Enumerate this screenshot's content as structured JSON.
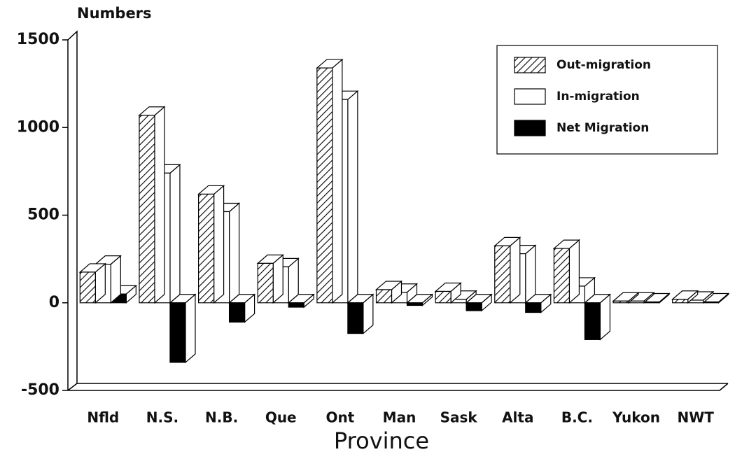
{
  "chart_data": {
    "type": "bar3d",
    "y_label": "Numbers",
    "x_label": "Province",
    "categories": [
      "Nfld",
      "N.S.",
      "N.B.",
      "Que",
      "Ont",
      "Man",
      "Sask",
      "Alta",
      "B.C.",
      "Yukon",
      "NWT"
    ],
    "series": [
      {
        "name": "Out-migration",
        "color": "#ffffff",
        "hatch": true,
        "values": [
          175,
          1070,
          620,
          225,
          1340,
          75,
          65,
          325,
          310,
          10,
          20
        ]
      },
      {
        "name": "In-migration",
        "color": "#ffffff",
        "hatch": false,
        "values": [
          220,
          740,
          520,
          205,
          1160,
          60,
          20,
          280,
          95,
          10,
          15
        ]
      },
      {
        "name": "Net Migration",
        "color": "#000000",
        "hatch": false,
        "values": [
          50,
          -340,
          -110,
          -25,
          -175,
          -15,
          -45,
          -55,
          -210,
          5,
          5
        ]
      }
    ],
    "ylim": [
      -500,
      1500
    ],
    "yticks": [
      -500,
      0,
      500,
      1000,
      1500
    ],
    "legend": "upper right"
  }
}
